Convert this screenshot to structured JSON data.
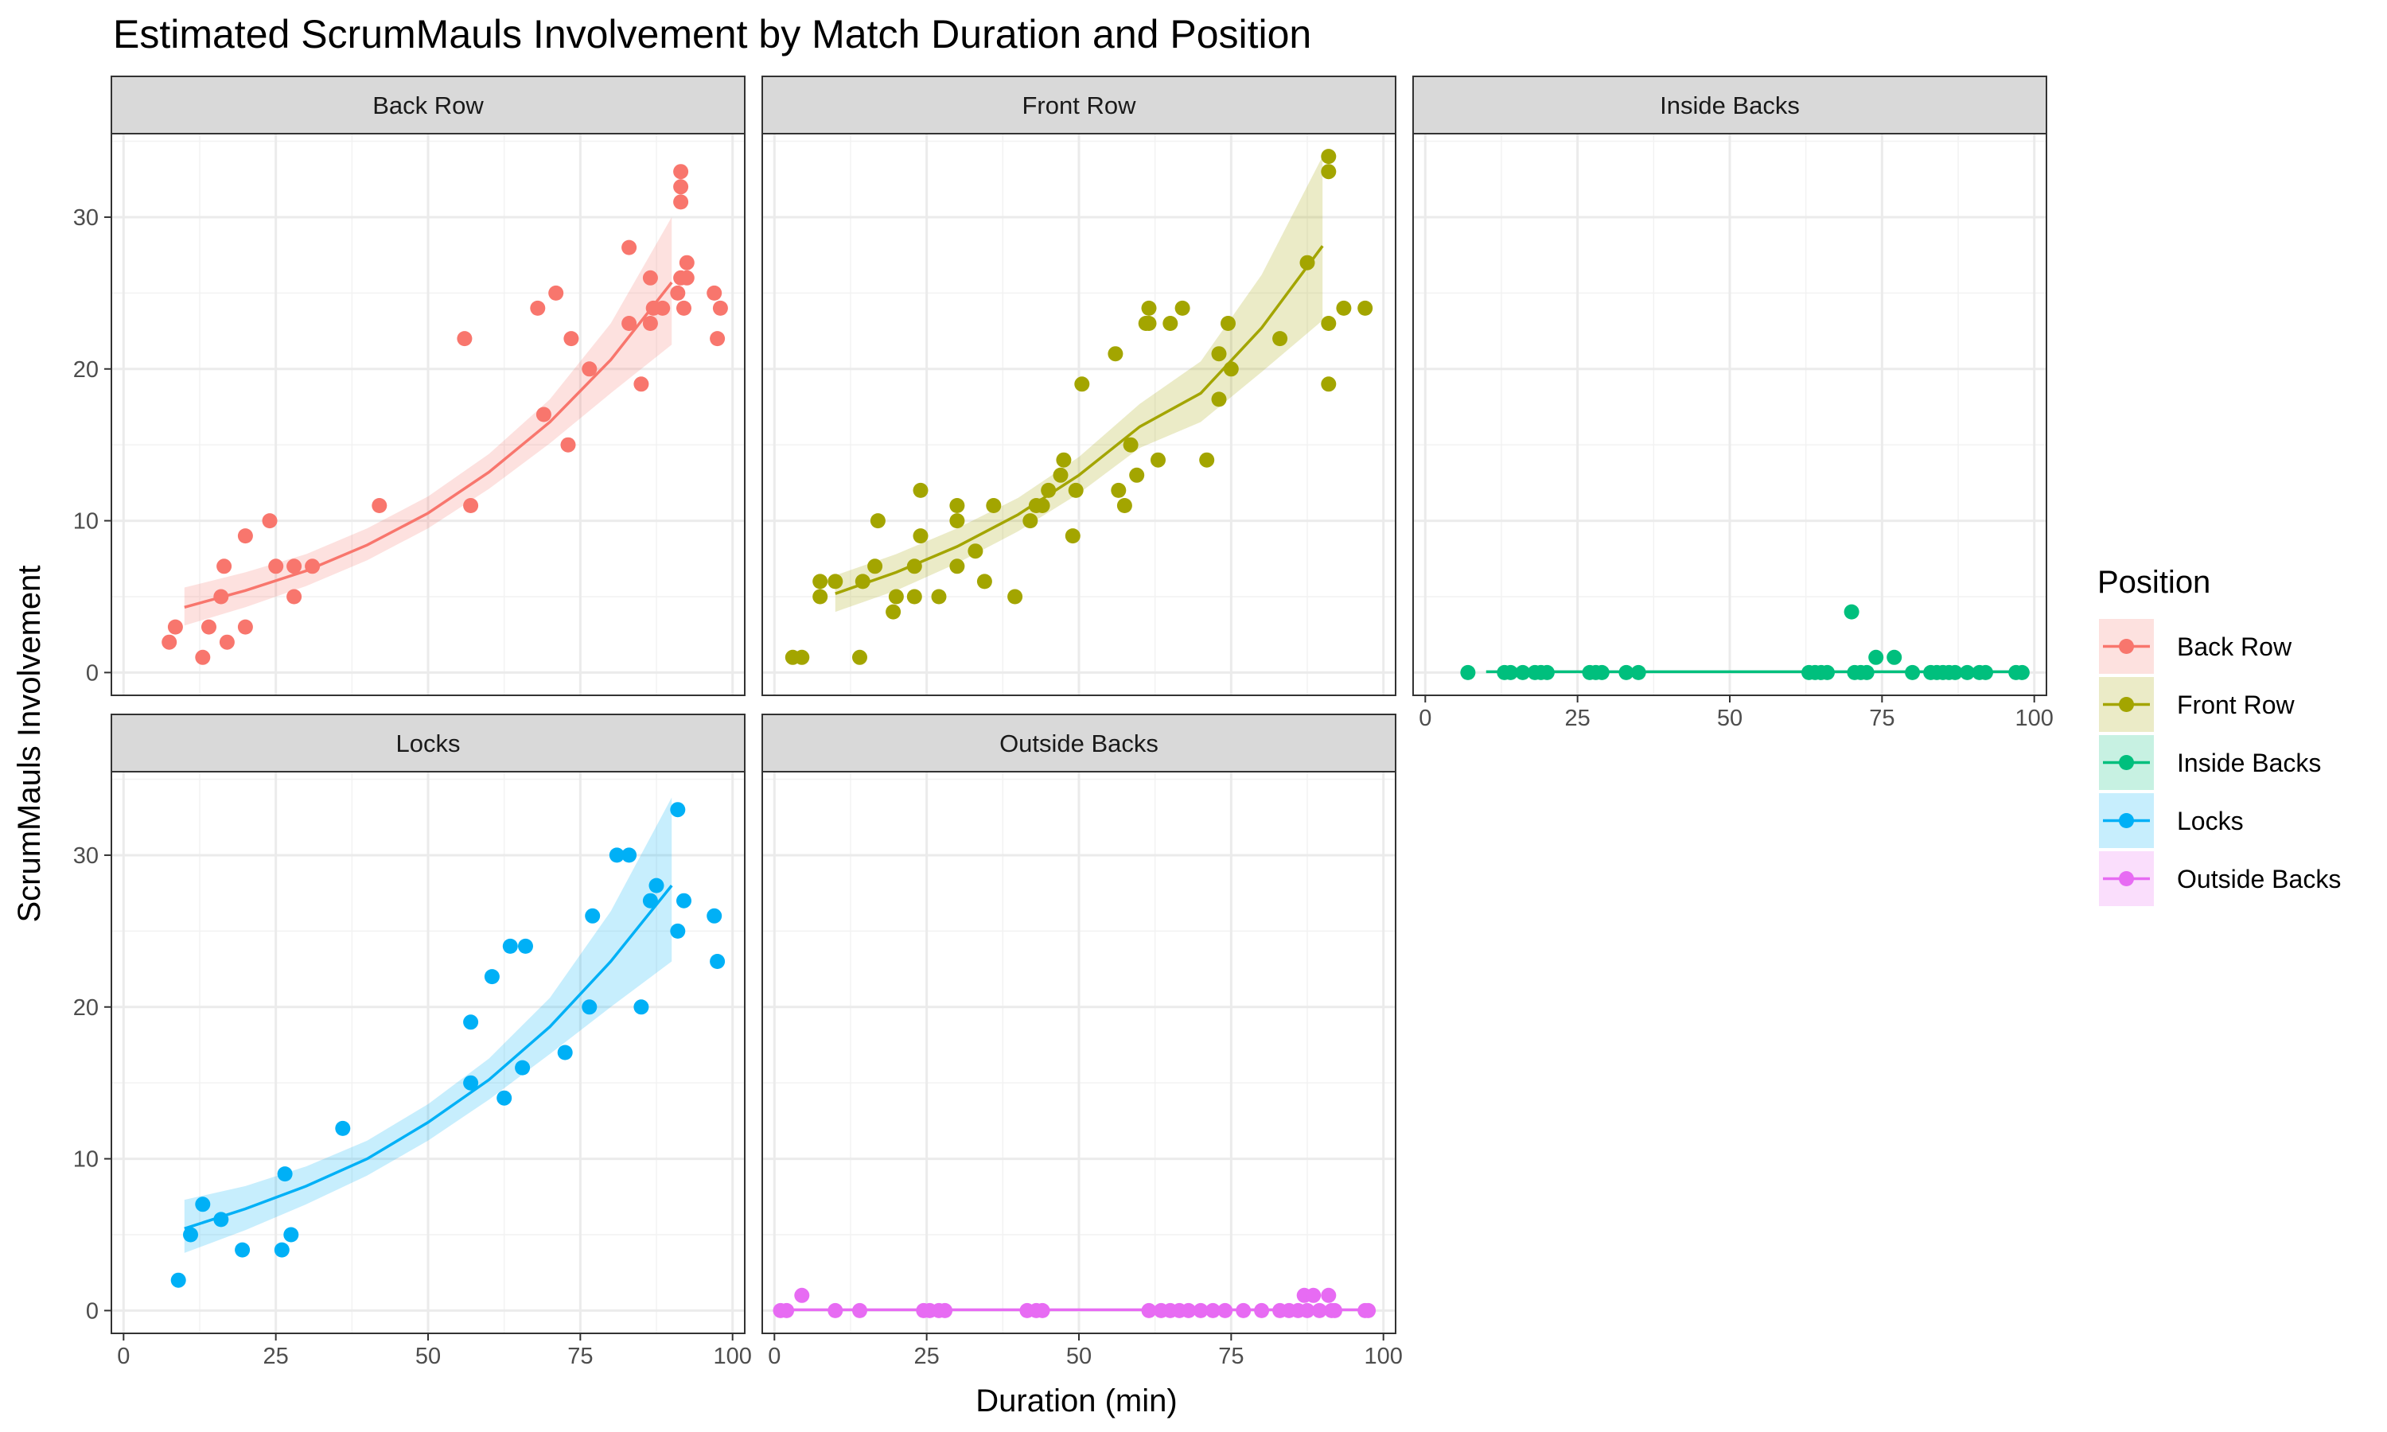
{
  "chart_data": {
    "type": "scatter",
    "title": "Estimated ScrumMauls Involvement by Match Duration and Position",
    "xlabel": "Duration (min)",
    "ylabel": "ScrumMauls Involvement",
    "xlim": [
      -2,
      102
    ],
    "x_ticks": [
      0,
      25,
      50,
      75,
      100
    ],
    "y_ticks": [
      0,
      10,
      20,
      30
    ],
    "grid": true,
    "legend": {
      "title": "Position",
      "placement": "right"
    },
    "facets": [
      {
        "name": "Back Row",
        "color": "#F8766D",
        "row": 0,
        "col": 0,
        "ylim": [
          -1.5,
          35.5
        ],
        "points": [
          [
            7.5,
            2
          ],
          [
            8.5,
            3
          ],
          [
            13,
            1
          ],
          [
            14,
            3
          ],
          [
            16,
            5
          ],
          [
            16.5,
            7
          ],
          [
            17,
            2
          ],
          [
            20,
            9
          ],
          [
            20,
            3
          ],
          [
            24,
            10
          ],
          [
            25,
            7
          ],
          [
            28,
            7
          ],
          [
            28,
            5
          ],
          [
            31,
            7
          ],
          [
            42,
            11
          ],
          [
            56,
            22
          ],
          [
            57,
            11
          ],
          [
            68,
            24
          ],
          [
            69,
            17
          ],
          [
            71,
            25
          ],
          [
            73,
            15
          ],
          [
            73.5,
            22
          ],
          [
            76.5,
            20
          ],
          [
            83,
            28
          ],
          [
            83,
            23
          ],
          [
            85,
            19
          ],
          [
            86.5,
            26
          ],
          [
            86.5,
            23
          ],
          [
            87,
            24
          ],
          [
            88.5,
            24
          ],
          [
            91,
            25
          ],
          [
            91.5,
            33
          ],
          [
            91.5,
            32
          ],
          [
            91.5,
            31
          ],
          [
            91.5,
            26
          ],
          [
            92,
            24
          ],
          [
            92.5,
            27
          ],
          [
            92.5,
            26
          ],
          [
            97,
            25
          ],
          [
            97.5,
            22
          ],
          [
            98,
            24
          ]
        ],
        "fit": [
          [
            10,
            4.3
          ],
          [
            20,
            5.4
          ],
          [
            30,
            6.7
          ],
          [
            40,
            8.4
          ],
          [
            50,
            10.5
          ],
          [
            60,
            13.2
          ],
          [
            70,
            16.5
          ],
          [
            80,
            20.6
          ],
          [
            90,
            25.7
          ]
        ],
        "band_lower": [
          [
            10,
            3.1
          ],
          [
            20,
            4.3
          ],
          [
            30,
            5.7
          ],
          [
            40,
            7.4
          ],
          [
            50,
            9.5
          ],
          [
            60,
            12.1
          ],
          [
            70,
            15.1
          ],
          [
            80,
            18.4
          ],
          [
            90,
            21.6
          ]
        ],
        "band_upper": [
          [
            10,
            5.6
          ],
          [
            20,
            6.6
          ],
          [
            30,
            7.8
          ],
          [
            40,
            9.5
          ],
          [
            50,
            11.6
          ],
          [
            60,
            14.4
          ],
          [
            70,
            18.0
          ],
          [
            80,
            23.0
          ],
          [
            90,
            30.0
          ]
        ]
      },
      {
        "name": "Front Row",
        "color": "#A3A500",
        "row": 0,
        "col": 1,
        "ylim": [
          -1.5,
          35.5
        ],
        "points": [
          [
            3,
            1
          ],
          [
            4.5,
            1
          ],
          [
            7.5,
            6
          ],
          [
            7.5,
            5
          ],
          [
            10,
            6
          ],
          [
            14,
            1
          ],
          [
            14.5,
            6
          ],
          [
            16.5,
            7
          ],
          [
            17,
            10
          ],
          [
            19.5,
            4
          ],
          [
            20,
            5
          ],
          [
            23,
            7
          ],
          [
            23,
            5
          ],
          [
            24,
            12
          ],
          [
            24,
            9
          ],
          [
            27,
            5
          ],
          [
            30,
            11
          ],
          [
            30,
            10
          ],
          [
            30,
            7
          ],
          [
            33,
            8
          ],
          [
            34.5,
            6
          ],
          [
            36,
            11
          ],
          [
            39.5,
            5
          ],
          [
            42,
            10
          ],
          [
            43,
            11
          ],
          [
            44,
            11
          ],
          [
            45,
            12
          ],
          [
            47,
            13
          ],
          [
            47.5,
            14
          ],
          [
            49,
            9
          ],
          [
            49.5,
            12
          ],
          [
            50.5,
            19
          ],
          [
            56,
            21
          ],
          [
            56.5,
            12
          ],
          [
            57.5,
            11
          ],
          [
            58.5,
            15
          ],
          [
            59.5,
            13
          ],
          [
            61,
            23
          ],
          [
            61.5,
            24
          ],
          [
            61.5,
            23
          ],
          [
            63,
            14
          ],
          [
            65,
            23
          ],
          [
            67,
            24
          ],
          [
            71,
            14
          ],
          [
            73,
            21
          ],
          [
            73,
            18
          ],
          [
            74.5,
            23
          ],
          [
            75,
            20
          ],
          [
            83,
            22
          ],
          [
            87.5,
            27
          ],
          [
            91,
            34
          ],
          [
            91,
            33
          ],
          [
            91,
            23
          ],
          [
            91,
            19
          ],
          [
            93.5,
            24
          ],
          [
            97,
            24
          ]
        ],
        "fit": [
          [
            10,
            5.2
          ],
          [
            20,
            6.6
          ],
          [
            30,
            8.3
          ],
          [
            40,
            10.4
          ],
          [
            50,
            13.0
          ],
          [
            60,
            16.2
          ],
          [
            70,
            18.4
          ],
          [
            80,
            22.7
          ],
          [
            90,
            28.1
          ]
        ],
        "band_lower": [
          [
            10,
            4.0
          ],
          [
            20,
            5.4
          ],
          [
            30,
            7.2
          ],
          [
            40,
            9.3
          ],
          [
            50,
            11.8
          ],
          [
            60,
            14.8
          ],
          [
            70,
            16.5
          ],
          [
            80,
            19.8
          ],
          [
            90,
            23.2
          ]
        ],
        "band_upper": [
          [
            10,
            6.4
          ],
          [
            20,
            7.8
          ],
          [
            30,
            9.5
          ],
          [
            40,
            11.5
          ],
          [
            50,
            14.2
          ],
          [
            60,
            17.7
          ],
          [
            70,
            20.5
          ],
          [
            80,
            26.2
          ],
          [
            90,
            34.0
          ]
        ]
      },
      {
        "name": "Inside Backs",
        "color": "#00BF7D",
        "row": 0,
        "col": 2,
        "ylim": [
          -1.5,
          35.5
        ],
        "points": [
          [
            7,
            0
          ],
          [
            13,
            0
          ],
          [
            14,
            0
          ],
          [
            16,
            0
          ],
          [
            18,
            0
          ],
          [
            19,
            0
          ],
          [
            20,
            0
          ],
          [
            27,
            0
          ],
          [
            28,
            0
          ],
          [
            29,
            0
          ],
          [
            33,
            0
          ],
          [
            35,
            0
          ],
          [
            63,
            0
          ],
          [
            64,
            0
          ],
          [
            65,
            0
          ],
          [
            66,
            0
          ],
          [
            70,
            4
          ],
          [
            70.5,
            0
          ],
          [
            71.5,
            0
          ],
          [
            72.5,
            0
          ],
          [
            74,
            1
          ],
          [
            77,
            1
          ],
          [
            80,
            0
          ],
          [
            83,
            0
          ],
          [
            84,
            0
          ],
          [
            85,
            0
          ],
          [
            86,
            0
          ],
          [
            87,
            0
          ],
          [
            89,
            0
          ],
          [
            91,
            0
          ],
          [
            92,
            0
          ],
          [
            97,
            0
          ],
          [
            98,
            0
          ]
        ],
        "fit": [
          [
            10,
            0.05
          ],
          [
            25,
            0.05
          ],
          [
            50,
            0.05
          ],
          [
            75,
            0.05
          ],
          [
            98,
            0.05
          ]
        ],
        "band_lower": [
          [
            10,
            0
          ],
          [
            98,
            0
          ]
        ],
        "band_upper": [
          [
            10,
            0.15
          ],
          [
            98,
            0.15
          ]
        ]
      },
      {
        "name": "Locks",
        "color": "#00B0F6",
        "row": 1,
        "col": 0,
        "ylim": [
          -1.5,
          35.5
        ],
        "points": [
          [
            9,
            2
          ],
          [
            11,
            5
          ],
          [
            13,
            7
          ],
          [
            16,
            6
          ],
          [
            19.5,
            4
          ],
          [
            26,
            4
          ],
          [
            26.5,
            9
          ],
          [
            27.5,
            5
          ],
          [
            36,
            12
          ],
          [
            57,
            19
          ],
          [
            57,
            15
          ],
          [
            60.5,
            22
          ],
          [
            62.5,
            14
          ],
          [
            63.5,
            24
          ],
          [
            65.5,
            16
          ],
          [
            66,
            24
          ],
          [
            72.5,
            17
          ],
          [
            76.5,
            20
          ],
          [
            77,
            26
          ],
          [
            81,
            30
          ],
          [
            83,
            30
          ],
          [
            85,
            20
          ],
          [
            86.5,
            27
          ],
          [
            87.5,
            28
          ],
          [
            91,
            33
          ],
          [
            91,
            25
          ],
          [
            92,
            27
          ],
          [
            97,
            26
          ],
          [
            97.5,
            23
          ]
        ],
        "fit": [
          [
            10,
            5.4
          ],
          [
            20,
            6.7
          ],
          [
            30,
            8.2
          ],
          [
            40,
            10.0
          ],
          [
            50,
            12.4
          ],
          [
            60,
            15.2
          ],
          [
            70,
            18.7
          ],
          [
            80,
            23.0
          ],
          [
            90,
            28.0
          ]
        ],
        "band_lower": [
          [
            10,
            3.8
          ],
          [
            20,
            5.3
          ],
          [
            30,
            7.0
          ],
          [
            40,
            8.9
          ],
          [
            50,
            11.2
          ],
          [
            60,
            13.9
          ],
          [
            70,
            16.9
          ],
          [
            80,
            20.0
          ],
          [
            90,
            23.0
          ]
        ],
        "band_upper": [
          [
            10,
            7.3
          ],
          [
            20,
            8.2
          ],
          [
            30,
            9.5
          ],
          [
            40,
            11.2
          ],
          [
            50,
            13.6
          ],
          [
            60,
            16.6
          ],
          [
            70,
            20.6
          ],
          [
            80,
            26.3
          ],
          [
            90,
            33.8
          ]
        ]
      },
      {
        "name": "Outside Backs",
        "color": "#E76BF3",
        "row": 1,
        "col": 1,
        "ylim": [
          -1.5,
          35.5
        ],
        "points": [
          [
            1,
            0
          ],
          [
            2,
            0
          ],
          [
            4.5,
            1
          ],
          [
            10,
            0
          ],
          [
            14,
            0
          ],
          [
            24.5,
            0
          ],
          [
            25.5,
            0
          ],
          [
            27,
            0
          ],
          [
            28,
            0
          ],
          [
            41.5,
            0
          ],
          [
            43,
            0
          ],
          [
            44,
            0
          ],
          [
            61.5,
            0
          ],
          [
            63.5,
            0
          ],
          [
            65,
            0
          ],
          [
            66.5,
            0
          ],
          [
            68,
            0
          ],
          [
            70,
            0
          ],
          [
            72,
            0
          ],
          [
            74,
            0
          ],
          [
            77,
            0
          ],
          [
            80,
            0
          ],
          [
            83,
            0
          ],
          [
            84.5,
            0
          ],
          [
            86,
            0
          ],
          [
            87,
            1
          ],
          [
            87.5,
            0
          ],
          [
            88.5,
            1
          ],
          [
            89.5,
            0
          ],
          [
            91,
            1
          ],
          [
            91.5,
            0
          ],
          [
            92,
            0
          ],
          [
            97,
            0
          ],
          [
            97.5,
            0
          ]
        ],
        "fit": [
          [
            1,
            0.05
          ],
          [
            25,
            0.05
          ],
          [
            50,
            0.05
          ],
          [
            75,
            0.05
          ],
          [
            97,
            0.05
          ]
        ],
        "band_lower": [
          [
            1,
            0
          ],
          [
            97,
            0
          ]
        ],
        "band_upper": [
          [
            1,
            0.12
          ],
          [
            97,
            0.12
          ]
        ]
      }
    ]
  }
}
